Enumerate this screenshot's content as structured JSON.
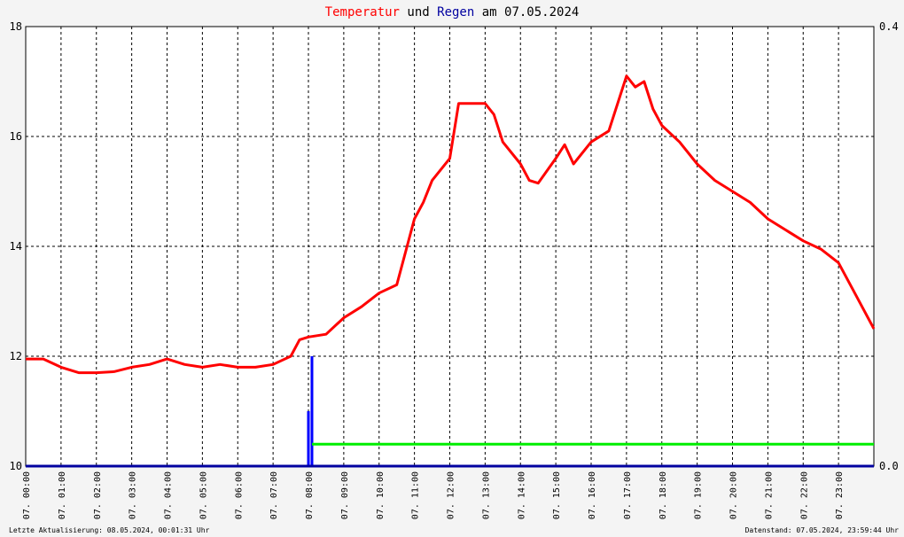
{
  "chart_data": {
    "type": "line",
    "title_parts": [
      {
        "text": "Temperatur",
        "color": "#ff0000"
      },
      {
        "text": "und",
        "color": "#000000"
      },
      {
        "text": "Regen",
        "color": "#0000a0"
      },
      {
        "text": "am 07.05.2024",
        "color": "#000000"
      }
    ],
    "xlim": [
      0,
      24
    ],
    "xticks": [
      {
        "value": 0,
        "label": "07. 00:00"
      },
      {
        "value": 1,
        "label": "07. 01:00"
      },
      {
        "value": 2,
        "label": "07. 02:00"
      },
      {
        "value": 3,
        "label": "07. 03:00"
      },
      {
        "value": 4,
        "label": "07. 04:00"
      },
      {
        "value": 5,
        "label": "07. 05:00"
      },
      {
        "value": 6,
        "label": "07. 06:00"
      },
      {
        "value": 7,
        "label": "07. 07:00"
      },
      {
        "value": 8,
        "label": "07. 08:00"
      },
      {
        "value": 9,
        "label": "07. 09:00"
      },
      {
        "value": 10,
        "label": "07. 10:00"
      },
      {
        "value": 11,
        "label": "07. 11:00"
      },
      {
        "value": 12,
        "label": "07. 12:00"
      },
      {
        "value": 13,
        "label": "07. 13:00"
      },
      {
        "value": 14,
        "label": "07. 14:00"
      },
      {
        "value": 15,
        "label": "07. 15:00"
      },
      {
        "value": 16,
        "label": "07. 16:00"
      },
      {
        "value": 17,
        "label": "07. 17:00"
      },
      {
        "value": 18,
        "label": "07. 18:00"
      },
      {
        "value": 19,
        "label": "07. 19:00"
      },
      {
        "value": 20,
        "label": "07. 20:00"
      },
      {
        "value": 21,
        "label": "07. 21:00"
      },
      {
        "value": 22,
        "label": "07. 22:00"
      },
      {
        "value": 23,
        "label": "07. 23:00"
      }
    ],
    "ylim": [
      10,
      18
    ],
    "yticks": [
      10,
      12,
      14,
      16,
      18
    ],
    "y2lim": [
      0,
      0.4
    ],
    "y2ticks": [
      {
        "value": 0,
        "label": "0.0"
      },
      {
        "value": 0.4,
        "label": "0.4"
      }
    ],
    "grid": true,
    "series": [
      {
        "color": "#ff0000",
        "style": "line",
        "x": [
          0,
          0.5,
          1,
          1.5,
          2,
          2.5,
          3,
          3.5,
          4,
          4.5,
          5,
          5.5,
          6,
          6.5,
          7,
          7.5,
          7.75,
          8,
          8.5,
          9,
          9.5,
          10,
          10.5,
          11,
          11.25,
          11.5,
          12,
          12.25,
          12.5,
          13,
          13.25,
          13.5,
          14,
          14.25,
          14.5,
          15,
          15.25,
          15.5,
          16,
          16.5,
          17,
          17.25,
          17.5,
          17.75,
          18,
          18.5,
          19,
          19.5,
          20,
          20.5,
          21,
          21.5,
          22,
          22.5,
          23,
          23.5,
          24
        ],
        "values": [
          11.95,
          11.95,
          11.8,
          11.7,
          11.7,
          11.72,
          11.8,
          11.85,
          11.95,
          11.85,
          11.8,
          11.85,
          11.8,
          11.8,
          11.85,
          12.0,
          12.3,
          12.35,
          12.4,
          12.7,
          12.9,
          13.15,
          13.3,
          14.5,
          14.8,
          15.2,
          15.6,
          16.6,
          16.6,
          16.6,
          16.4,
          15.9,
          15.5,
          15.2,
          15.15,
          15.6,
          15.85,
          15.5,
          15.9,
          16.1,
          17.1,
          16.9,
          17.0,
          16.5,
          16.2,
          15.9,
          15.5,
          15.2,
          15.0,
          14.8,
          14.5,
          14.3,
          14.1,
          13.95,
          13.7,
          13.1,
          12.5
        ]
      },
      {
        "color": "#0000ff",
        "style": "bar",
        "axis": "y2",
        "x": [
          8.0,
          8.1
        ],
        "values": [
          0.05,
          0.1
        ]
      },
      {
        "color": "#00ee00",
        "style": "line",
        "axis": "y2",
        "x": [
          8.1,
          24
        ],
        "values": [
          0.02,
          0.02
        ]
      }
    ],
    "footer_left": "Letzte Aktualisierung: 08.05.2024, 00:01:31 Uhr",
    "footer_right": "Datenstand: 07.05.2024, 23:59:44 Uhr"
  }
}
